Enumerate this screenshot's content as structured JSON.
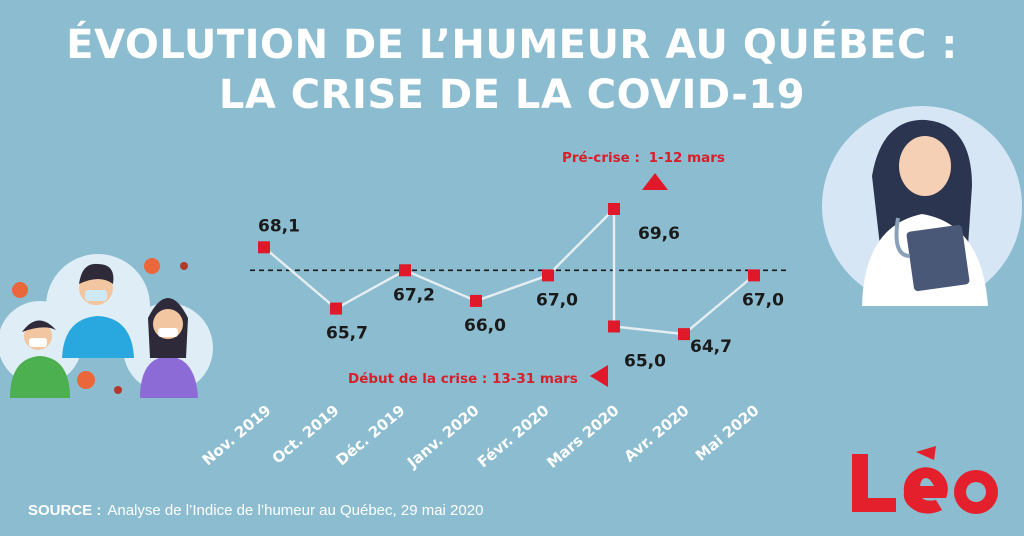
{
  "header": {
    "title_line1": "ÉVOLUTION DE L’HUMEUR AU QUÉBEC :",
    "title_line2": "LA CRISE DE LA COVID-19"
  },
  "chart_data": {
    "type": "line",
    "categories": [
      "Nov. 2019",
      "Oct. 2019",
      "Déc. 2019",
      "Janv. 2020",
      "Févr. 2020",
      "Mars 2020",
      "Avr. 2020",
      "Mai 2020"
    ],
    "series": [
      {
        "name": "Indice de l’humeur",
        "points": [
          {
            "label": "68,1",
            "value": 68.1,
            "period": "Nov. 2019"
          },
          {
            "label": "65,7",
            "value": 65.7,
            "period": "Oct. 2019"
          },
          {
            "label": "67,2",
            "value": 67.2,
            "period": "Déc. 2019"
          },
          {
            "label": "66,0",
            "value": 66.0,
            "period": "Janv. 2020"
          },
          {
            "label": "67,0",
            "value": 67.0,
            "period": "Févr. 2020"
          },
          {
            "label": "69,6",
            "value": 69.6,
            "period": "Mars 2020",
            "phase": "Pré-crise"
          },
          {
            "label": "65,0",
            "value": 65.0,
            "period": "Mars 2020",
            "phase": "Début de la crise"
          },
          {
            "label": "64,7",
            "value": 64.7,
            "period": "Avr. 2020"
          },
          {
            "label": "67,0",
            "value": 67.0,
            "period": "Mai 2020"
          }
        ]
      }
    ],
    "reference_line": {
      "value": 67.2,
      "style": "dashed"
    },
    "annotations": {
      "pre_crisis_prefix": "Pré-crise : ",
      "pre_crisis_dates": "1-12 mars",
      "crisis_start": "Début de la crise : 13-31 mars"
    },
    "ylim": [
      64.0,
      70.5
    ],
    "colors": {
      "marker": "#e0192a",
      "line": "#e6eef2",
      "label": "#1a1a1a",
      "annotation": "#d91e2a"
    }
  },
  "footer": {
    "source_label": "SOURCE :",
    "source_text": "Analyse de l’Indice de l’humeur au Québec, 29 mai 2020"
  },
  "brand": {
    "logo_text": "Léo",
    "color": "#e3202b"
  }
}
